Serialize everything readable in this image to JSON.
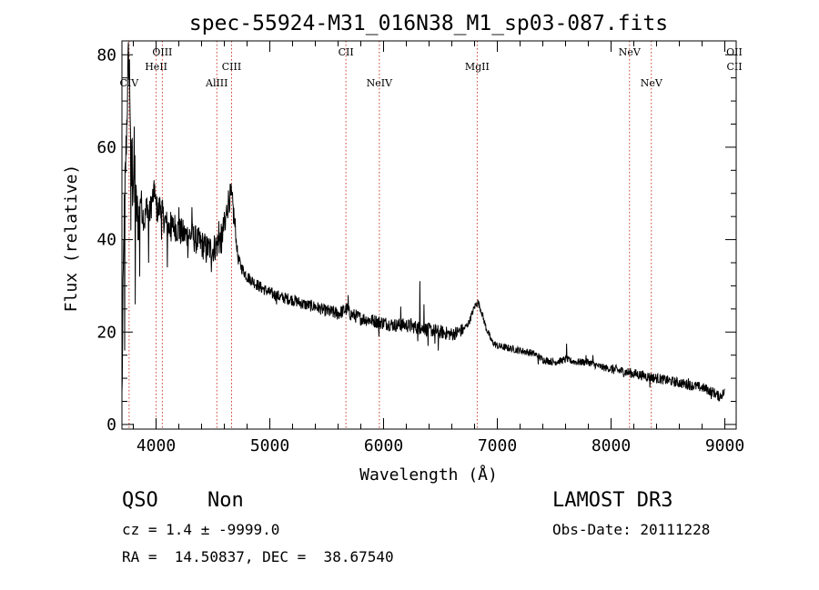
{
  "chart_data": {
    "type": "line",
    "title": "spec-55924-M31_016N38_M1_sp03-087.fits",
    "xlabel": "Wavelength (Å)",
    "ylabel": "Flux (relative)",
    "xlim": [
      3700,
      9100
    ],
    "ylim": [
      -1,
      83
    ],
    "x_ticks": [
      4000,
      5000,
      6000,
      7000,
      8000,
      9000
    ],
    "y_ticks": [
      0,
      20,
      40,
      60,
      80
    ],
    "x_tick_labels": [
      "4000",
      "5000",
      "6000",
      "7000",
      "8000",
      "9000"
    ],
    "y_tick_labels": [
      "0",
      "20",
      "40",
      "60",
      "80"
    ],
    "spectrum_anchors": [
      [
        3700,
        5
      ],
      [
        3705,
        17
      ],
      [
        3715,
        38
      ],
      [
        3725,
        50
      ],
      [
        3735,
        58
      ],
      [
        3745,
        68
      ],
      [
        3755,
        78
      ],
      [
        3762,
        80
      ],
      [
        3770,
        72
      ],
      [
        3780,
        58
      ],
      [
        3790,
        50
      ],
      [
        3800,
        54
      ],
      [
        3810,
        60
      ],
      [
        3820,
        48
      ],
      [
        3830,
        46
      ],
      [
        3845,
        44
      ],
      [
        3860,
        50
      ],
      [
        3880,
        46
      ],
      [
        3900,
        44
      ],
      [
        3920,
        48
      ],
      [
        3940,
        45
      ],
      [
        3960,
        48
      ],
      [
        3980,
        50
      ],
      [
        4000,
        47
      ],
      [
        4020,
        46
      ],
      [
        4040,
        48
      ],
      [
        4060,
        45
      ],
      [
        4080,
        44
      ],
      [
        4100,
        43
      ],
      [
        4130,
        42
      ],
      [
        4160,
        43
      ],
      [
        4200,
        42
      ],
      [
        4250,
        41
      ],
      [
        4300,
        41
      ],
      [
        4350,
        40
      ],
      [
        4400,
        39
      ],
      [
        4450,
        38
      ],
      [
        4500,
        38
      ],
      [
        4540,
        39
      ],
      [
        4570,
        40
      ],
      [
        4600,
        43
      ],
      [
        4620,
        46
      ],
      [
        4640,
        49
      ],
      [
        4660,
        49
      ],
      [
        4680,
        46
      ],
      [
        4700,
        41
      ],
      [
        4720,
        36
      ],
      [
        4750,
        34
      ],
      [
        4800,
        32
      ],
      [
        4850,
        31
      ],
      [
        4900,
        30
      ],
      [
        5000,
        28.5
      ],
      [
        5100,
        27.5
      ],
      [
        5200,
        27
      ],
      [
        5300,
        26
      ],
      [
        5400,
        25.5
      ],
      [
        5500,
        24.5
      ],
      [
        5600,
        24
      ],
      [
        5680,
        25
      ],
      [
        5700,
        24
      ],
      [
        5800,
        23
      ],
      [
        5900,
        22.5
      ],
      [
        6000,
        22
      ],
      [
        6100,
        21.5
      ],
      [
        6200,
        21.5
      ],
      [
        6300,
        21
      ],
      [
        6400,
        20.5
      ],
      [
        6500,
        20
      ],
      [
        6600,
        19.5
      ],
      [
        6700,
        20.5
      ],
      [
        6750,
        22
      ],
      [
        6800,
        25.5
      ],
      [
        6830,
        26.5
      ],
      [
        6860,
        24.5
      ],
      [
        6900,
        21
      ],
      [
        6950,
        18
      ],
      [
        7000,
        17
      ],
      [
        7100,
        16.5
      ],
      [
        7200,
        16
      ],
      [
        7300,
        15.5
      ],
      [
        7350,
        15
      ],
      [
        7400,
        14
      ],
      [
        7500,
        13.5
      ],
      [
        7600,
        14
      ],
      [
        7700,
        13.5
      ],
      [
        7800,
        13.5
      ],
      [
        7900,
        12.5
      ],
      [
        8000,
        12
      ],
      [
        8100,
        11.5
      ],
      [
        8200,
        11
      ],
      [
        8300,
        10.5
      ],
      [
        8400,
        10
      ],
      [
        8500,
        9.5
      ],
      [
        8600,
        9
      ],
      [
        8700,
        8.5
      ],
      [
        8800,
        8
      ],
      [
        8900,
        7
      ],
      [
        8950,
        6
      ],
      [
        9000,
        7
      ]
    ],
    "spikes": [
      [
        3723,
        16
      ],
      [
        3778,
        42
      ],
      [
        3790,
        62
      ],
      [
        3812,
        48
      ],
      [
        3818,
        26
      ],
      [
        3857,
        32
      ],
      [
        3935,
        35
      ],
      [
        3987,
        52
      ],
      [
        4048,
        40
      ],
      [
        4100,
        34
      ],
      [
        4128,
        46
      ],
      [
        4200,
        47
      ],
      [
        4280,
        36
      ],
      [
        4315,
        47
      ],
      [
        4440,
        35
      ],
      [
        4486,
        33
      ],
      [
        4552,
        44
      ],
      [
        4575,
        37
      ],
      [
        4608,
        42
      ],
      [
        5060,
        26
      ],
      [
        5690,
        28
      ],
      [
        5960,
        19
      ],
      [
        6150,
        25.5
      ],
      [
        6210,
        20
      ],
      [
        6240,
        23
      ],
      [
        6300,
        18
      ],
      [
        6320,
        31
      ],
      [
        6355,
        26
      ],
      [
        6390,
        17
      ],
      [
        6450,
        17.5
      ],
      [
        6480,
        16
      ],
      [
        6640,
        19
      ],
      [
        7360,
        13
      ],
      [
        7608,
        17.5
      ],
      [
        7780,
        15
      ],
      [
        7840,
        15
      ],
      [
        8340,
        8
      ],
      [
        8680,
        10
      ],
      [
        8880,
        5.5
      ]
    ],
    "emission_lines": [
      {
        "name": "CIV",
        "wavelength": 3763,
        "row": 3
      },
      {
        "name": "HeII",
        "wavelength": 4001,
        "row": 2
      },
      {
        "name": "OIII",
        "wavelength": 4055,
        "row": 1
      },
      {
        "name": "AlIII",
        "wavelength": 4534,
        "row": 3
      },
      {
        "name": "CIII",
        "wavelength": 4664,
        "row": 2
      },
      {
        "name": "CII",
        "wavelength": 5669,
        "row": 1
      },
      {
        "name": "NeIV",
        "wavelength": 5963,
        "row": 3
      },
      {
        "name": "MgII",
        "wavelength": 6823,
        "row": 2
      },
      {
        "name": "NeV",
        "wavelength": 8162,
        "row": 1
      },
      {
        "name": "NeV",
        "wavelength": 8354,
        "row": 3
      },
      {
        "name": "OII",
        "wavelength": 9084,
        "row": 1
      },
      {
        "name": "CII",
        "wavelength": 9084,
        "row": 2
      }
    ],
    "colors": {
      "spectrum": "#000000",
      "emission_line": "#cc3a2a",
      "axes": "#000000"
    }
  },
  "info": {
    "class": "QSO",
    "subclass": "Non",
    "cz": "cz = 1.4 ± -9999.0",
    "coords": "RA =  14.50837, DEC =  38.67540",
    "survey": "LAMOST DR3",
    "obs_date": "Obs-Date: 20111228"
  }
}
